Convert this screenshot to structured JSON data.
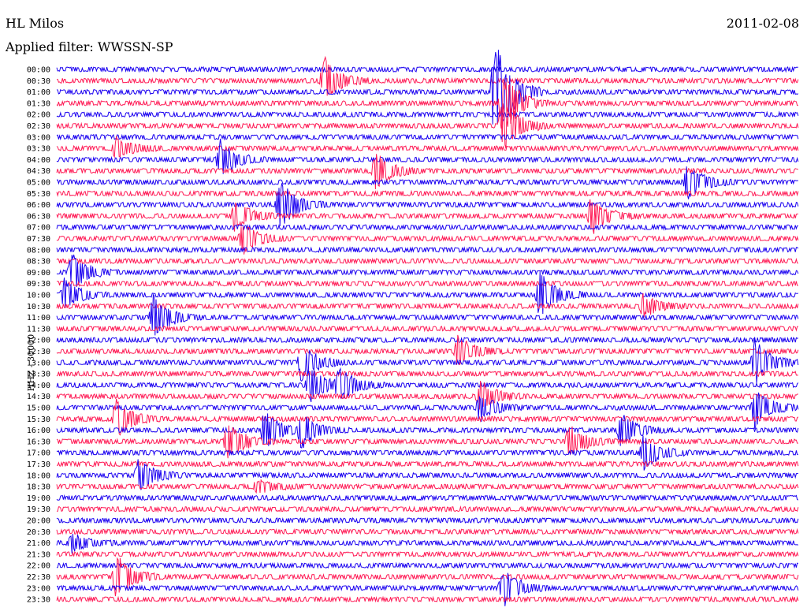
{
  "header": {
    "station": "HL Milos",
    "filter": "Applied filter: WWSSN-SP",
    "date": "2011-02-08"
  },
  "chart_data": {
    "type": "line",
    "title": "HL Milos",
    "subtitle": "Applied filter: WWSSN-SP",
    "date": "2011-02-08",
    "ylabel": "HHZ - 30000",
    "row_labels": [
      "00:00",
      "00:30",
      "01:00",
      "01:30",
      "02:00",
      "02:30",
      "03:00",
      "03:30",
      "04:00",
      "04:30",
      "05:00",
      "05:30",
      "06:00",
      "06:30",
      "07:00",
      "07:30",
      "08:00",
      "08:30",
      "09:00",
      "09:30",
      "10:00",
      "10:30",
      "11:00",
      "11:30",
      "12:00",
      "12:30",
      "13:00",
      "13:30",
      "14:00",
      "14:30",
      "15:00",
      "15:30",
      "16:00",
      "16:30",
      "17:00",
      "17:30",
      "18:00",
      "18:30",
      "19:00",
      "19:30",
      "20:00",
      "20:30",
      "21:00",
      "21:30",
      "22:00",
      "22:30",
      "23:00",
      "23:30"
    ],
    "colors": {
      "even_rows": "#1a00f0",
      "odd_rows": "#ff1a55"
    },
    "events": [
      {
        "row": 1,
        "x": 0.36,
        "amp": 30
      },
      {
        "row": 2,
        "x": 0.59,
        "amp": 80
      },
      {
        "row": 3,
        "x": 0.6,
        "amp": 45
      },
      {
        "row": 5,
        "x": 0.6,
        "amp": 40
      },
      {
        "row": 7,
        "x": 0.08,
        "amp": 14
      },
      {
        "row": 8,
        "x": 0.22,
        "amp": 25
      },
      {
        "row": 9,
        "x": 0.43,
        "amp": 25
      },
      {
        "row": 10,
        "x": 0.85,
        "amp": 25
      },
      {
        "row": 12,
        "x": 0.3,
        "amp": 35
      },
      {
        "row": 13,
        "x": 0.24,
        "amp": 20
      },
      {
        "row": 13,
        "x": 0.72,
        "amp": 25
      },
      {
        "row": 15,
        "x": 0.25,
        "amp": 20
      },
      {
        "row": 18,
        "x": 0.02,
        "amp": 25
      },
      {
        "row": 20,
        "x": 0.01,
        "amp": 20
      },
      {
        "row": 20,
        "x": 0.65,
        "amp": 30
      },
      {
        "row": 21,
        "x": 0.79,
        "amp": 15
      },
      {
        "row": 22,
        "x": 0.13,
        "amp": 30
      },
      {
        "row": 25,
        "x": 0.54,
        "amp": 20
      },
      {
        "row": 26,
        "x": 0.33,
        "amp": 25
      },
      {
        "row": 26,
        "x": 0.94,
        "amp": 30
      },
      {
        "row": 28,
        "x": 0.34,
        "amp": 25
      },
      {
        "row": 28,
        "x": 0.38,
        "amp": 22
      },
      {
        "row": 29,
        "x": 0.57,
        "amp": 20
      },
      {
        "row": 30,
        "x": 0.57,
        "amp": 18
      },
      {
        "row": 30,
        "x": 0.94,
        "amp": 25
      },
      {
        "row": 31,
        "x": 0.08,
        "amp": 25
      },
      {
        "row": 32,
        "x": 0.28,
        "amp": 25
      },
      {
        "row": 32,
        "x": 0.33,
        "amp": 22
      },
      {
        "row": 32,
        "x": 0.76,
        "amp": 22
      },
      {
        "row": 33,
        "x": 0.23,
        "amp": 25
      },
      {
        "row": 33,
        "x": 0.69,
        "amp": 22
      },
      {
        "row": 34,
        "x": 0.79,
        "amp": 22
      },
      {
        "row": 36,
        "x": 0.11,
        "amp": 22
      },
      {
        "row": 37,
        "x": 0.27,
        "amp": 10
      },
      {
        "row": 42,
        "x": 0.02,
        "amp": 12
      },
      {
        "row": 45,
        "x": 0.08,
        "amp": 30
      },
      {
        "row": 46,
        "x": 0.6,
        "amp": 28
      }
    ]
  }
}
